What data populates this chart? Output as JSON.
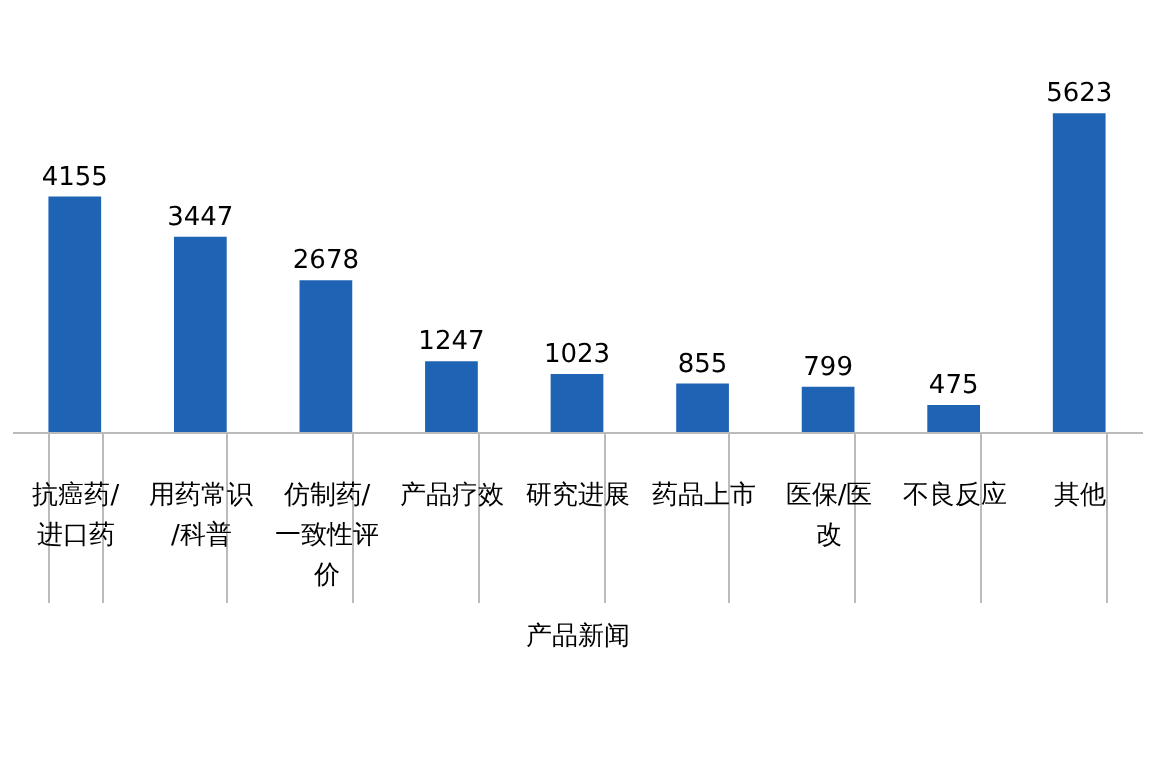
{
  "chart_data": {
    "type": "bar",
    "xlabel": "产品新闻",
    "categories": [
      "抗癌药/进口药",
      "用药常识/科普",
      "仿制药/一致性评价",
      "产品疗效",
      "研究进展",
      "药品上市",
      "医保/医改",
      "不良反应",
      "其他"
    ],
    "values": [
      4155,
      3447,
      2678,
      1247,
      1023,
      855,
      799,
      475,
      5623
    ],
    "color": "#1f64b4",
    "data_labels": true
  }
}
